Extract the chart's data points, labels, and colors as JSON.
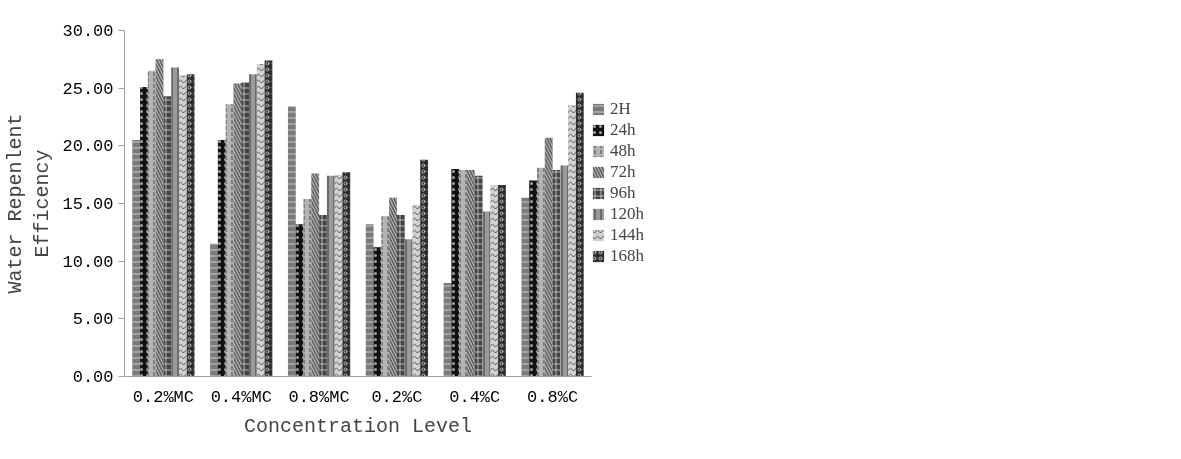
{
  "chart_data": {
    "type": "bar",
    "xlabel": "Concentration Level",
    "ylabel": "Water Repenlent\nEfficency",
    "categories": [
      "0.2%MC",
      "0.4%MC",
      "0.8%MC",
      "0.2%C",
      "0.4%C",
      "0.8%C"
    ],
    "ylim": [
      0,
      30
    ],
    "yticks": [
      {
        "value": 0,
        "label": "0.00"
      },
      {
        "value": 5,
        "label": "5.00"
      },
      {
        "value": 10,
        "label": "10.00"
      },
      {
        "value": 15,
        "label": "15.00"
      },
      {
        "value": 20,
        "label": "20.00"
      },
      {
        "value": 25,
        "label": "25.00"
      },
      {
        "value": 30,
        "label": "30.00"
      }
    ],
    "grid": false,
    "legend": "right",
    "series": [
      {
        "name": "2H",
        "color": "#7a7a7a",
        "values": [
          20.5,
          11.5,
          23.4,
          13.2,
          8.1,
          15.5
        ]
      },
      {
        "name": "24h",
        "color": "#111111",
        "values": [
          25.1,
          20.5,
          13.2,
          11.2,
          18.0,
          17.0
        ]
      },
      {
        "name": "48h",
        "color": "#b4b4b4",
        "values": [
          26.5,
          23.6,
          15.4,
          13.9,
          17.9,
          18.1
        ]
      },
      {
        "name": "72h",
        "color": "#666666",
        "values": [
          27.5,
          25.4,
          17.6,
          15.5,
          17.9,
          20.7
        ]
      },
      {
        "name": "96h",
        "color": "#444444",
        "values": [
          24.3,
          25.5,
          14.0,
          14.0,
          17.4,
          17.9
        ]
      },
      {
        "name": "120h",
        "color": "#9a9a9a",
        "values": [
          26.8,
          26.2,
          17.4,
          11.9,
          14.3,
          18.3
        ]
      },
      {
        "name": "144h",
        "color": "#d2d2d2",
        "values": [
          26.1,
          27.1,
          17.5,
          14.9,
          16.6,
          23.5
        ]
      },
      {
        "name": "168h",
        "color": "#2e2e2e",
        "values": [
          26.2,
          27.4,
          17.7,
          18.8,
          16.6,
          24.6
        ]
      }
    ]
  }
}
